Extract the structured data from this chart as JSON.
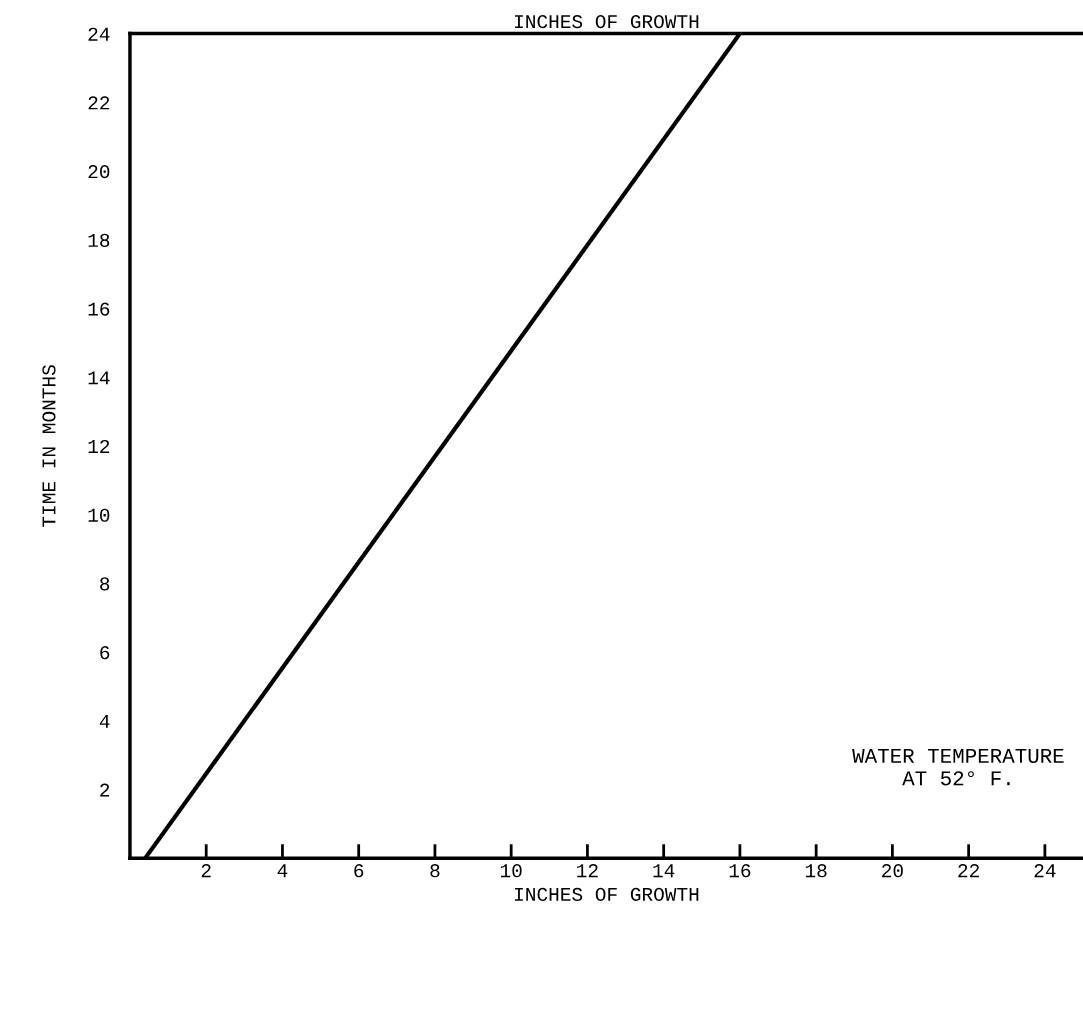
{
  "chart_data": {
    "type": "line",
    "title": "INCHES OF GROWTH",
    "xlabel": "INCHES OF GROWTH",
    "ylabel": "TIME IN MONTHS",
    "series": [
      {
        "x": [
          0.4,
          16
        ],
        "values": [
          0,
          24
        ],
        "color": "#000000"
      }
    ],
    "xlim": [
      0,
      25
    ],
    "xticks": [
      2,
      4,
      6,
      8,
      10,
      12,
      14,
      16,
      18,
      20,
      22,
      24
    ],
    "ylim": [
      0,
      24
    ],
    "yticks": [
      2,
      4,
      6,
      8,
      10,
      12,
      14,
      16,
      18,
      20,
      22,
      24
    ],
    "annotations": [
      "WATER TEMPERATURE\nAT 52° F."
    ],
    "grid": false,
    "legend": false,
    "marker": "none",
    "line_style": "solid"
  }
}
